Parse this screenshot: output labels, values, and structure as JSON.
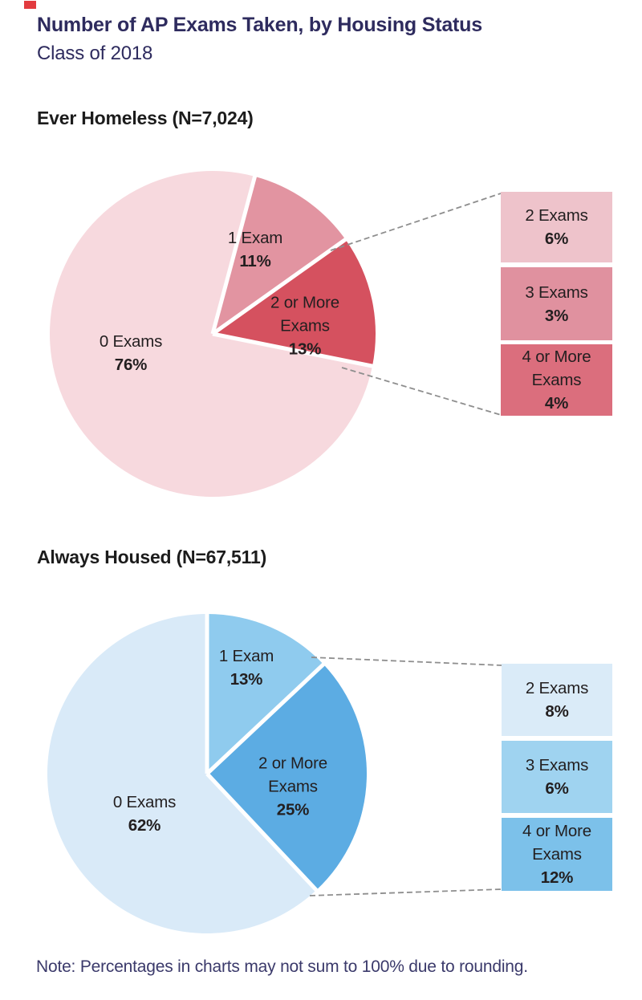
{
  "page": {
    "title": "Number of AP Exams Taken, by Housing Status",
    "subtitle": "Class of 2018",
    "note": "Note: Percentages in charts may not sum to 100% due to rounding.",
    "accent_red": "#e23b3f",
    "title_color": "#2e2b5e",
    "note_color": "#3b3a6b",
    "dash_line_color": "#8e8e8e"
  },
  "chart_data": [
    {
      "type": "pie",
      "title": "Ever Homeless (N=7,024)",
      "legend_position": "labels-on-slices",
      "slices": [
        {
          "label": "0 Exams",
          "pct": "76%",
          "value": 76,
          "color": "#f7d9de"
        },
        {
          "label": "1 Exam",
          "pct": "11%",
          "value": 11,
          "color": "#e294a1"
        },
        {
          "label": "2 or More Exams",
          "pct": "13%",
          "value": 13,
          "color": "#d5515f"
        }
      ],
      "breakout_boxes": [
        {
          "label": "2 Exams",
          "pct": "6%",
          "value": 6,
          "color": "#eec3cb"
        },
        {
          "label": "3 Exams",
          "pct": "3%",
          "value": 3,
          "color": "#e0919f"
        },
        {
          "label": "4 or More Exams",
          "pct": "4%",
          "value": 4,
          "color": "#db6e7d"
        }
      ]
    },
    {
      "type": "pie",
      "title": "Always Housed (N=67,511)",
      "legend_position": "labels-on-slices",
      "slices": [
        {
          "label": "0 Exams",
          "pct": "62%",
          "value": 62,
          "color": "#d9eaf8"
        },
        {
          "label": "1 Exam",
          "pct": "13%",
          "value": 13,
          "color": "#8fcbee"
        },
        {
          "label": "2 or More Exams",
          "pct": "25%",
          "value": 25,
          "color": "#5cace3"
        }
      ],
      "breakout_boxes": [
        {
          "label": "2 Exams",
          "pct": "8%",
          "value": 8,
          "color": "#daebf8"
        },
        {
          "label": "3 Exams",
          "pct": "6%",
          "value": 6,
          "color": "#9fd3f0"
        },
        {
          "label": "4 or More Exams",
          "pct": "12%",
          "value": 12,
          "color": "#7cc1ea"
        }
      ]
    }
  ]
}
